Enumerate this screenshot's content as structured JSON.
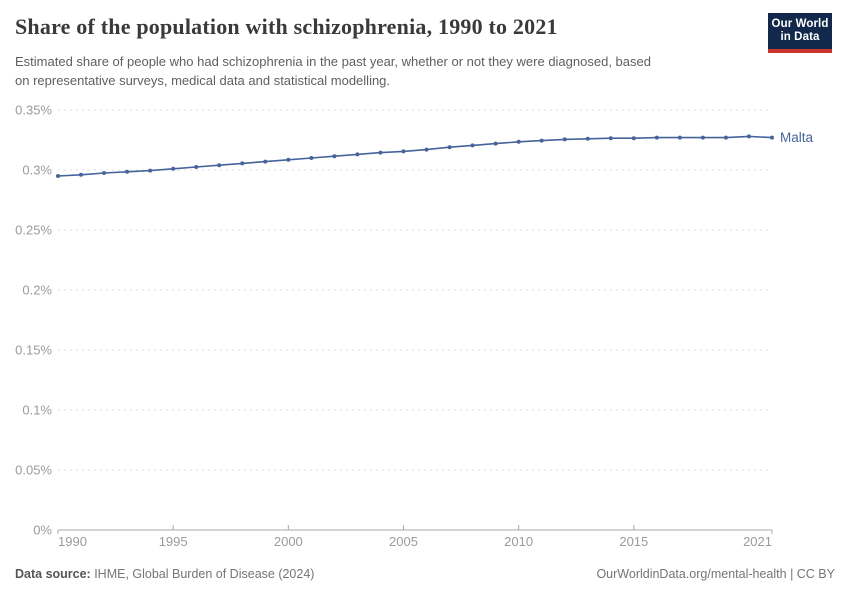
{
  "header": {
    "title": "Share of the population with schizophrenia, 1990 to 2021",
    "subtitle": "Estimated share of people who had schizophrenia in the past year, whether or not they were diagnosed, based on representative surveys, medical data and statistical modelling."
  },
  "logo": {
    "line1": "Our World",
    "line2": "in Data",
    "bg_color": "#12294B",
    "accent_color": "#C9342C"
  },
  "chart_data": {
    "type": "line",
    "title": "Share of the population with schizophrenia, 1990 to 2021",
    "xlabel": "",
    "ylabel": "",
    "xlim": [
      1990,
      2021
    ],
    "ylim": [
      0,
      0.35
    ],
    "grid": "horizontal-dashed",
    "legend_position": "end-of-line-label",
    "x": [
      1990,
      1991,
      1992,
      1993,
      1994,
      1995,
      1996,
      1997,
      1998,
      1999,
      2000,
      2001,
      2002,
      2003,
      2004,
      2005,
      2006,
      2007,
      2008,
      2009,
      2010,
      2011,
      2012,
      2013,
      2014,
      2015,
      2016,
      2017,
      2018,
      2019,
      2020,
      2021
    ],
    "series": [
      {
        "name": "Malta",
        "color": "#46639B",
        "values": [
          0.295,
          0.296,
          0.2975,
          0.2985,
          0.2995,
          0.301,
          0.3025,
          0.304,
          0.3055,
          0.307,
          0.3085,
          0.31,
          0.3115,
          0.313,
          0.3145,
          0.3155,
          0.317,
          0.319,
          0.3205,
          0.322,
          0.3235,
          0.3245,
          0.3255,
          0.326,
          0.3265,
          0.3265,
          0.327,
          0.327,
          0.327,
          0.327,
          0.328,
          0.327
        ]
      }
    ],
    "x_ticks": [
      1990,
      1995,
      2000,
      2005,
      2010,
      2015,
      2021
    ],
    "x_tick_labels": [
      "1990",
      "1995",
      "2000",
      "2005",
      "2010",
      "2015",
      "2021"
    ],
    "y_ticks": [
      0,
      0.05,
      0.1,
      0.15,
      0.2,
      0.25,
      0.3,
      0.35
    ],
    "y_tick_labels": [
      "0%",
      "0.05%",
      "0.1%",
      "0.15%",
      "0.2%",
      "0.25%",
      "0.3%",
      "0.35%"
    ],
    "axis_color": "#a8a8a8",
    "grid_color": "#dcdcdc",
    "tick_label_color": "#9b9b9b"
  },
  "footer": {
    "source_label": "Data source:",
    "source_value": " IHME, Global Burden of Disease (2024)",
    "link": "OurWorldinData.org/mental-health | CC BY"
  }
}
